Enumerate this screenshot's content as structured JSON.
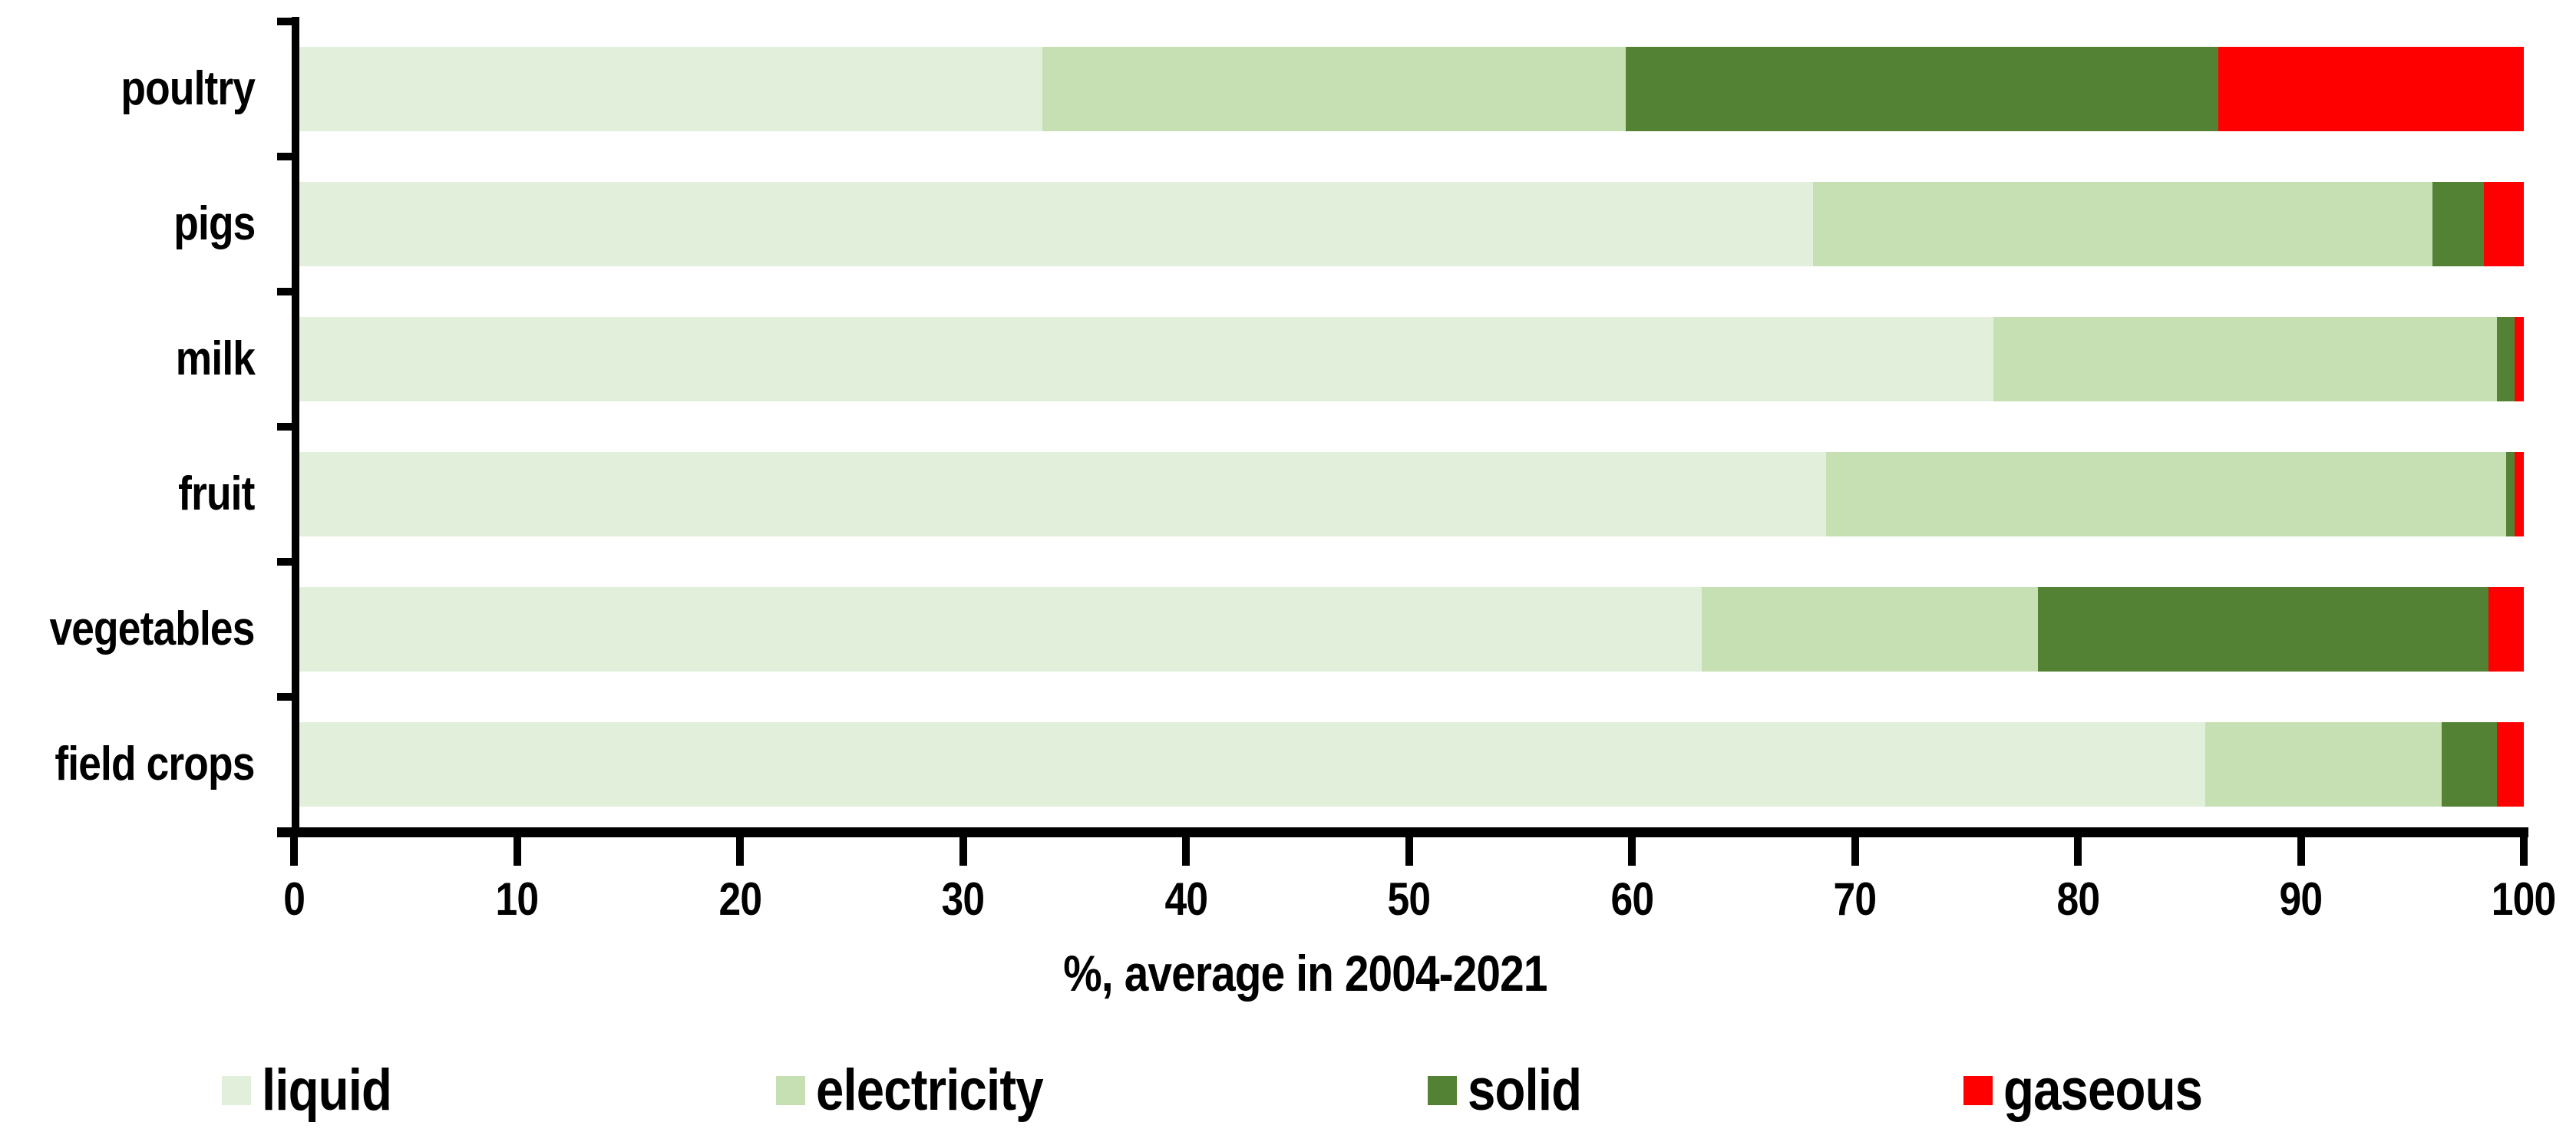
{
  "chart_data": {
    "type": "bar",
    "orientation": "horizontal_stacked",
    "title": "",
    "xlabel": "%, average in 2004-2021",
    "ylabel": "",
    "categories": [
      "poultry",
      "pigs",
      "milk",
      "fruit",
      "vegetables",
      "field crops"
    ],
    "series": [
      {
        "name": "liquid",
        "color": "#E2EFDA",
        "values": [
          33.5,
          68.1,
          76.2,
          68.7,
          63.1,
          85.7
        ]
      },
      {
        "name": "electricity",
        "color": "#C6E0B4",
        "values": [
          26.2,
          27.8,
          22.6,
          30.5,
          15.1,
          10.6
        ]
      },
      {
        "name": "solid",
        "color": "#548235",
        "values": [
          26.6,
          2.3,
          0.8,
          0.4,
          20.2,
          2.5
        ]
      },
      {
        "name": "gaseous",
        "color": "#FF0000",
        "values": [
          13.7,
          1.8,
          0.4,
          0.4,
          1.6,
          1.2
        ]
      }
    ],
    "x_ticks": [
      "0",
      "10",
      "20",
      "30",
      "40",
      "50",
      "60",
      "70",
      "80",
      "90",
      "100"
    ],
    "xlim": [
      0,
      100
    ],
    "grid": false,
    "legend_position": "bottom",
    "axis_color": "#000000",
    "background_color": "#FFFFFF"
  }
}
